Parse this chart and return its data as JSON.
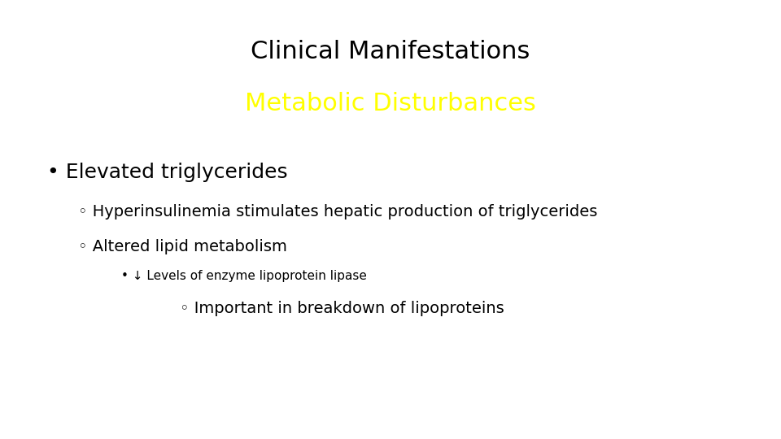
{
  "title_line1": "Clinical Manifestations",
  "title_line2": "Metabolic Disturbances",
  "title_line1_color": "#000000",
  "title_line2_color": "#ffff00",
  "background_color": "#ffffff",
  "title_fontsize": 22,
  "title_font": "DejaVu Sans",
  "bullet1_text": "Elevated triglycerides",
  "bullet1_fontsize": 18,
  "sub1_text": "Hyperinsulinemia stimulates hepatic production of triglycerides",
  "sub2_text": "Altered lipid metabolism",
  "sub_fontsize": 14,
  "subsub1_text": "↓ Levels of enzyme lipoprotein lipase",
  "subsub1_fontsize": 11,
  "subsubsub1_text": "Important in breakdown of lipoproteins",
  "subsubsub1_fontsize": 14,
  "bullet_color": "#000000",
  "figwidth": 9.6,
  "figheight": 5.4,
  "dpi": 100
}
